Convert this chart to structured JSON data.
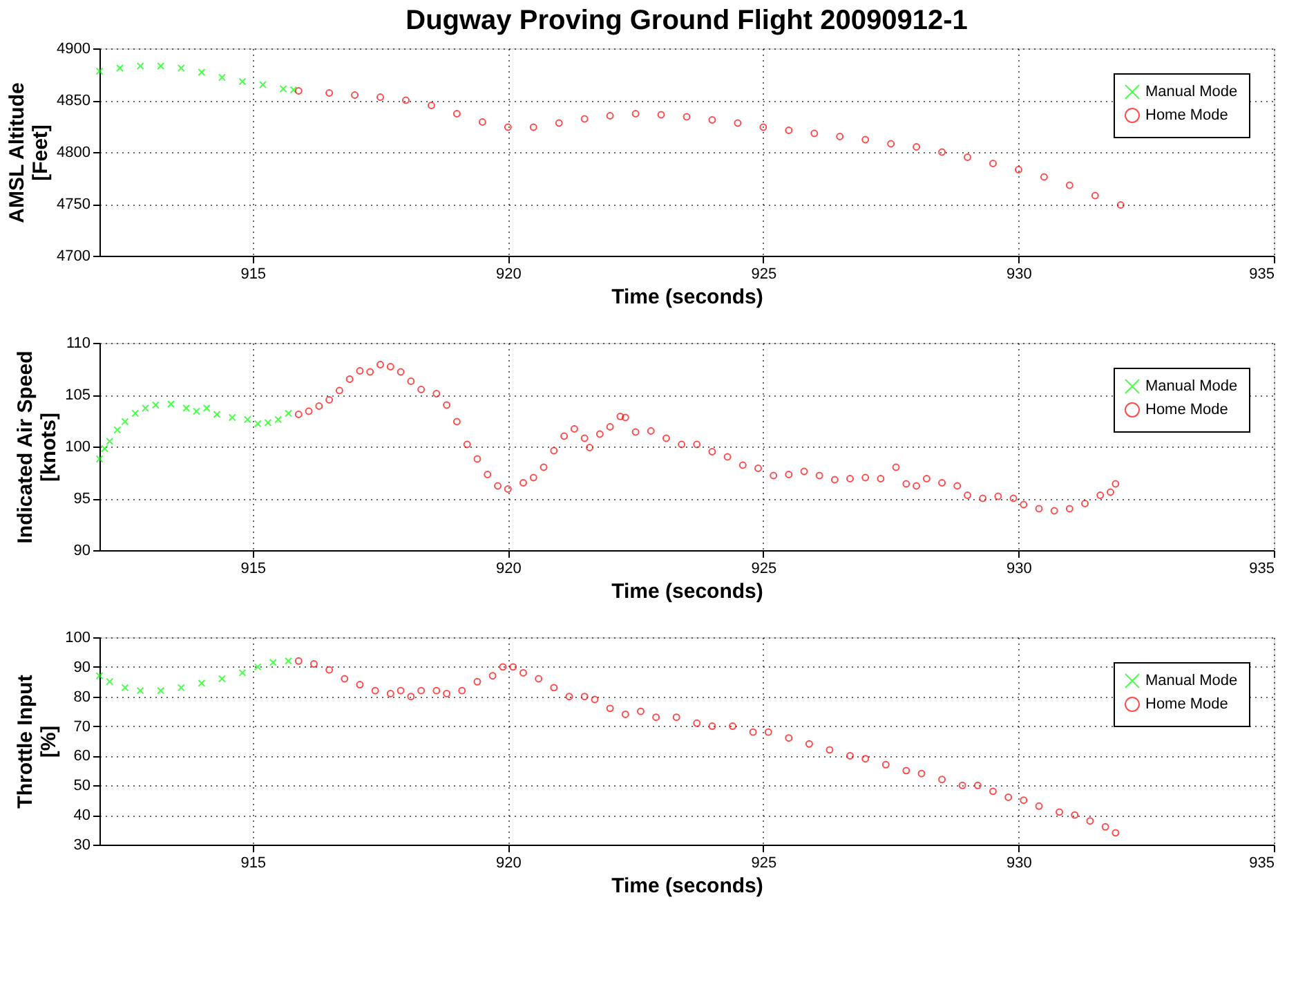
{
  "chart_data": [
    {
      "type": "scatter",
      "title": "Dugway Proving Ground Flight 20090912-1",
      "xlabel": "Time (seconds)",
      "ylabel": "AMSL Altitude\n[Feet]",
      "xlim": [
        912,
        935
      ],
      "xticks": [
        915,
        920,
        925,
        930,
        935
      ],
      "ylim": [
        4700,
        4900
      ],
      "yticks": [
        4700,
        4750,
        4800,
        4850,
        4900
      ],
      "grid": true,
      "legend": "top right",
      "series": [
        {
          "name": "Manual Mode",
          "color": "#00ff00",
          "marker": "cross",
          "x": [
            912.0,
            912.4,
            912.8,
            913.2,
            913.6,
            914.0,
            914.4,
            914.8,
            915.2,
            915.6,
            915.8
          ],
          "values": [
            4878,
            4881,
            4883,
            4883,
            4881,
            4877,
            4872,
            4868,
            4865,
            4861,
            4860
          ]
        },
        {
          "name": "Home Mode",
          "color": "#ff0000",
          "marker": "circle",
          "x": [
            915.9,
            916.5,
            917,
            917.5,
            918,
            918.5,
            919,
            919.5,
            920,
            920.5,
            921,
            921.5,
            922,
            922.5,
            923,
            923.5,
            924,
            924.5,
            925,
            925.5,
            926,
            926.5,
            927,
            927.5,
            928,
            928.5,
            929,
            929.5,
            930,
            930.5,
            931,
            931.5,
            932
          ],
          "values": [
            4859,
            4857,
            4855,
            4853,
            4850,
            4845,
            4837,
            4829,
            4824,
            4824,
            4828,
            4832,
            4835,
            4837,
            4836,
            4834,
            4831,
            4828,
            4824,
            4821,
            4818,
            4815,
            4812,
            4808,
            4805,
            4800,
            4795,
            4789,
            4783,
            4776,
            4768,
            4758,
            4749
          ]
        }
      ]
    },
    {
      "type": "scatter",
      "xlabel": "Time (seconds)",
      "ylabel": "Indicated Air Speed\n[knots]",
      "xlim": [
        912,
        935
      ],
      "xticks": [
        915,
        920,
        925,
        930,
        935
      ],
      "ylim": [
        90,
        110
      ],
      "yticks": [
        90,
        95,
        100,
        105,
        110
      ],
      "grid": true,
      "legend": "top right",
      "series": [
        {
          "name": "Manual Mode",
          "color": "#00ff00",
          "marker": "cross",
          "x": [
            912.0,
            912.1,
            912.2,
            912.35,
            912.5,
            912.7,
            912.9,
            913.1,
            913.4,
            913.7,
            913.9,
            914.1,
            914.3,
            914.6,
            914.9,
            915.1,
            915.3,
            915.5,
            915.7
          ],
          "values": [
            98.8,
            99.8,
            100.5,
            101.6,
            102.4,
            103.2,
            103.7,
            104.0,
            104.1,
            103.7,
            103.4,
            103.7,
            103.1,
            102.8,
            102.6,
            102.2,
            102.3,
            102.6,
            103.2
          ]
        },
        {
          "name": "Home Mode",
          "color": "#ff0000",
          "marker": "circle",
          "x": [
            915.9,
            916.1,
            916.3,
            916.5,
            916.7,
            916.9,
            917.1,
            917.3,
            917.5,
            917.7,
            917.9,
            918.1,
            918.3,
            918.6,
            918.8,
            919.0,
            919.2,
            919.4,
            919.6,
            919.8,
            920.0,
            920.3,
            920.5,
            920.7,
            920.9,
            921.1,
            921.3,
            921.5,
            921.6,
            921.8,
            922.0,
            922.2,
            922.3,
            922.5,
            922.8,
            923.1,
            923.4,
            923.7,
            924.0,
            924.3,
            924.6,
            924.9,
            925.2,
            925.5,
            925.8,
            926.1,
            926.4,
            926.7,
            927.0,
            927.3,
            927.6,
            927.8,
            928.0,
            928.2,
            928.5,
            928.8,
            929.0,
            929.3,
            929.6,
            929.9,
            930.1,
            930.4,
            930.7,
            931.0,
            931.3,
            931.6,
            931.8,
            931.9
          ],
          "values": [
            103.1,
            103.4,
            103.9,
            104.5,
            105.4,
            106.5,
            107.3,
            107.2,
            107.9,
            107.7,
            107.2,
            106.3,
            105.5,
            105.1,
            104.0,
            102.4,
            100.2,
            98.8,
            97.3,
            96.2,
            95.9,
            96.5,
            97.0,
            98.0,
            99.6,
            101.0,
            101.7,
            100.8,
            99.9,
            101.2,
            101.9,
            102.9,
            102.8,
            101.4,
            101.5,
            100.8,
            100.2,
            100.2,
            99.5,
            99.0,
            98.2,
            97.9,
            97.2,
            97.3,
            97.6,
            97.2,
            96.8,
            96.9,
            97.0,
            96.9,
            98.0,
            96.4,
            96.2,
            96.9,
            96.5,
            96.2,
            95.3,
            95.0,
            95.2,
            95.0,
            94.4,
            94.0,
            93.8,
            94.0,
            94.5,
            95.3,
            95.6,
            96.4
          ]
        }
      ]
    },
    {
      "type": "scatter",
      "xlabel": "Time (seconds)",
      "ylabel": "Throttle Input\n[%]",
      "xlim": [
        912,
        935
      ],
      "xticks": [
        915,
        920,
        925,
        930,
        935
      ],
      "ylim": [
        30,
        100
      ],
      "yticks": [
        30,
        40,
        50,
        60,
        70,
        80,
        90,
        100
      ],
      "grid": true,
      "legend": "top right",
      "series": [
        {
          "name": "Manual Mode",
          "color": "#00ff00",
          "marker": "cross",
          "x": [
            912.0,
            912.2,
            912.5,
            912.8,
            913.2,
            913.6,
            914.0,
            914.4,
            914.8,
            915.1,
            915.4,
            915.7
          ],
          "values": [
            87,
            85,
            83,
            82,
            82,
            83,
            84.5,
            86,
            88,
            90,
            91.5,
            92
          ]
        },
        {
          "name": "Home Mode",
          "color": "#ff0000",
          "marker": "circle",
          "x": [
            915.9,
            916.2,
            916.5,
            916.8,
            917.1,
            917.4,
            917.7,
            917.9,
            918.1,
            918.3,
            918.6,
            918.8,
            919.1,
            919.4,
            919.7,
            919.9,
            920.1,
            920.3,
            920.6,
            920.9,
            921.2,
            921.5,
            921.7,
            922.0,
            922.3,
            922.6,
            922.9,
            923.3,
            923.7,
            924.0,
            924.4,
            924.8,
            925.1,
            925.5,
            925.9,
            926.3,
            926.7,
            927.0,
            927.4,
            927.8,
            928.1,
            928.5,
            928.9,
            929.2,
            929.5,
            929.8,
            930.1,
            930.4,
            930.8,
            931.1,
            931.4,
            931.7,
            931.9
          ],
          "values": [
            92,
            91,
            89,
            86,
            84,
            82,
            81,
            82,
            80,
            82,
            82,
            81,
            82,
            85,
            87,
            90,
            90,
            88,
            86,
            83,
            80,
            80,
            79,
            76,
            74,
            75,
            73,
            73,
            71,
            70,
            70,
            68,
            68,
            66,
            64,
            62,
            60,
            59,
            57,
            55,
            54,
            52,
            50,
            50,
            48,
            46,
            45,
            43,
            41,
            40,
            38,
            36,
            34
          ]
        }
      ]
    }
  ]
}
